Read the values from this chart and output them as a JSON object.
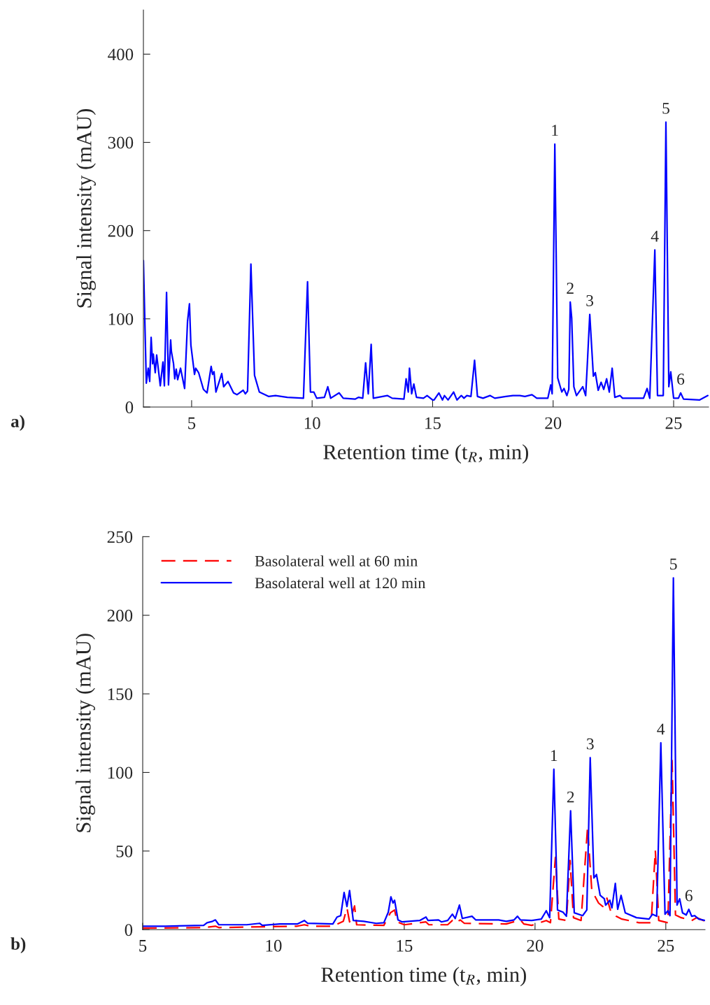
{
  "chart_data": [
    {
      "type": "line",
      "xlabel": "Retention time (t$_{R}$, min)",
      "ylabel": "Signal intensity (mAU)",
      "xlim": [
        3,
        26.45
      ],
      "ylim": [
        0,
        450
      ],
      "xticks": [
        5,
        10,
        15,
        20,
        25
      ],
      "yticks": [
        0,
        100,
        200,
        300,
        400
      ],
      "grid": false,
      "legend": false,
      "annotations": [
        "a)",
        {
          "text": "1",
          "x": 20.07,
          "y": 298
        },
        {
          "text": "2",
          "x": 20.71,
          "y": 119
        },
        {
          "text": "3",
          "x": 21.52,
          "y": 105
        },
        {
          "text": "4",
          "x": 24.22,
          "y": 178
        },
        {
          "text": "5",
          "x": 24.68,
          "y": 323
        },
        {
          "text": "6",
          "x": 25.29,
          "y": 16
        }
      ],
      "series": [
        {
          "color": "#0000ff",
          "line_style": "solid",
          "x": [
            3.0,
            3.12,
            3.2,
            3.26,
            3.32,
            3.38,
            3.41,
            3.49,
            3.55,
            3.7,
            3.81,
            3.87,
            3.96,
            4.04,
            4.13,
            4.16,
            4.25,
            4.3,
            4.36,
            4.42,
            4.54,
            4.71,
            4.83,
            4.91,
            4.97,
            5.12,
            5.17,
            5.29,
            5.49,
            5.64,
            5.81,
            5.87,
            5.93,
            6.01,
            6.25,
            6.33,
            6.51,
            6.74,
            6.88,
            7.14,
            7.23,
            7.32,
            7.46,
            7.61,
            7.81,
            8.19,
            8.48,
            8.97,
            9.64,
            9.81,
            9.93,
            10.07,
            10.19,
            10.51,
            10.65,
            10.77,
            11.12,
            11.29,
            11.78,
            11.93,
            12.1,
            12.22,
            12.33,
            12.45,
            12.54,
            13.12,
            13.32,
            13.81,
            13.9,
            13.99,
            14.04,
            14.13,
            14.22,
            14.33,
            14.62,
            14.77,
            15.0,
            15.06,
            15.26,
            15.41,
            15.49,
            15.64,
            15.87,
            16.01,
            16.19,
            16.3,
            16.42,
            16.59,
            16.74,
            16.86,
            17.09,
            17.38,
            17.58,
            18.04,
            18.33,
            18.62,
            18.83,
            19.12,
            19.32,
            19.78,
            19.9,
            19.96,
            20.07,
            20.19,
            20.36,
            20.45,
            20.57,
            20.65,
            20.71,
            20.77,
            20.86,
            20.97,
            21.23,
            21.35,
            21.41,
            21.52,
            21.67,
            21.75,
            21.87,
            21.99,
            22.1,
            22.22,
            22.33,
            22.45,
            22.56,
            22.77,
            22.88,
            23.75,
            23.9,
            24.01,
            24.22,
            24.33,
            24.57,
            24.68,
            24.8,
            24.88,
            25.0,
            25.2,
            25.29,
            25.41,
            26.07,
            26.42
          ],
          "values": [
            166,
            27,
            44,
            29,
            79,
            49,
            60,
            39,
            59,
            24,
            51,
            24,
            130,
            25,
            76,
            63,
            49,
            32,
            43,
            31,
            44,
            21,
            97,
            117,
            70,
            37,
            44,
            39,
            20,
            16,
            46,
            37,
            40,
            17,
            38,
            23,
            29,
            16,
            14,
            19,
            15,
            18,
            162,
            36,
            17,
            12,
            13,
            11,
            10,
            142,
            17,
            17,
            10,
            11,
            23,
            10,
            16,
            10,
            9,
            11,
            10,
            50,
            15,
            71,
            10,
            13,
            10,
            9,
            32,
            17,
            44,
            15,
            26,
            11,
            10,
            13,
            8,
            8,
            16,
            8,
            13,
            8,
            17,
            8,
            13,
            10,
            13,
            12,
            53,
            12,
            10,
            13,
            10,
            12,
            13,
            13,
            12,
            14,
            10,
            10,
            25,
            15,
            298,
            33,
            17,
            21,
            13,
            20,
            119,
            101,
            23,
            13,
            23,
            13,
            44,
            105,
            35,
            39,
            19,
            28,
            20,
            32,
            17,
            44,
            11,
            13,
            10,
            10,
            21,
            10,
            178,
            13,
            13,
            323,
            23,
            40,
            10,
            10,
            16,
            9,
            8,
            13
          ]
        }
      ]
    },
    {
      "type": "line",
      "xlabel": "Retention time (t$_{R}$, min)",
      "ylabel": "Signal intensity (mAU)",
      "xlim": [
        5,
        26.5
      ],
      "ylim": [
        0,
        250
      ],
      "xticks": [
        5,
        10,
        15,
        20,
        25
      ],
      "yticks": [
        0,
        50,
        100,
        150,
        200,
        250
      ],
      "grid": false,
      "legend": "top left",
      "annotations": [
        "b)",
        {
          "text": "1",
          "x": 20.72,
          "y": 102
        },
        {
          "text": "2",
          "x": 21.36,
          "y": 75.6
        },
        {
          "text": "3",
          "x": 22.11,
          "y": 109.4
        },
        {
          "text": "4",
          "x": 24.81,
          "y": 118.8
        },
        {
          "text": "5",
          "x": 25.29,
          "y": 223.8
        },
        {
          "text": "6",
          "x": 25.88,
          "y": 12.9
        }
      ],
      "series": [
        {
          "name": "Basolateral well at 60 min",
          "color": "#ff0000",
          "line_style": "dashed",
          "x": [
            5.0,
            7.33,
            7.78,
            7.91,
            10.91,
            11.18,
            11.42,
            12.27,
            12.67,
            12.81,
            12.91,
            13.1,
            13.18,
            14.22,
            14.47,
            14.63,
            14.73,
            15.0,
            15.83,
            15.94,
            16.66,
            16.84,
            16.95,
            17.14,
            17.3,
            18.9,
            19.44,
            19.57,
            19.87,
            20.43,
            20.59,
            20.78,
            20.91,
            21.2,
            21.34,
            21.47,
            21.76,
            22.01,
            22.17,
            22.43,
            22.59,
            22.75,
            22.91,
            23.1,
            23.32,
            23.98,
            24.44,
            24.6,
            24.73,
            25.08,
            25.24,
            25.37,
            25.59,
            25.99,
            26.18,
            26.5
          ],
          "values": [
            0.9,
            1.3,
            2.2,
            1.3,
            2.2,
            3.1,
            2.2,
            2.2,
            5.3,
            13.8,
            4.9,
            15.1,
            3.1,
            2.7,
            10.7,
            12.5,
            4.9,
            3.1,
            4.9,
            3.1,
            3.1,
            5.8,
            4.0,
            6.2,
            4.0,
            3.6,
            6.2,
            3.6,
            2.7,
            5.8,
            4.4,
            46,
            6.7,
            5.8,
            44,
            7.6,
            5.8,
            65.4,
            24.9,
            16.9,
            14.7,
            20.0,
            10.7,
            8.5,
            6.7,
            4.4,
            4.4,
            50.3,
            5.8,
            4.4,
            107.6,
            9.3,
            7.6,
            5.8,
            7.6,
            5.3
          ]
        },
        {
          "name": "Basolateral well at 120 min",
          "color": "#0000ff",
          "line_style": "solid",
          "x": [
            5.0,
            5.86,
            7.33,
            7.46,
            7.67,
            7.78,
            7.91,
            8.98,
            9.47,
            9.57,
            10.24,
            10.91,
            11.18,
            11.31,
            12.27,
            12.43,
            12.57,
            12.7,
            12.81,
            12.91,
            13.05,
            13.45,
            13.93,
            14.22,
            14.39,
            14.49,
            14.57,
            14.63,
            14.76,
            14.92,
            15.59,
            15.83,
            15.91,
            16.31,
            16.42,
            16.66,
            16.84,
            16.95,
            17.11,
            17.22,
            17.59,
            17.73,
            18.61,
            18.9,
            19.2,
            19.33,
            19.44,
            19.87,
            20.24,
            20.43,
            20.56,
            20.72,
            20.86,
            21.07,
            21.2,
            21.36,
            21.5,
            21.82,
            21.98,
            22.11,
            22.25,
            22.35,
            22.49,
            22.65,
            22.7,
            22.86,
            22.94,
            23.07,
            23.16,
            23.29,
            23.45,
            23.88,
            24.36,
            24.49,
            24.65,
            24.81,
            24.97,
            25.08,
            25.16,
            25.29,
            25.43,
            25.53,
            25.64,
            25.78,
            25.88,
            25.99,
            26.1,
            26.26,
            26.5
          ],
          "values": [
            2.2,
            2.2,
            2.7,
            4.4,
            5.3,
            6.2,
            3.1,
            3.1,
            4.0,
            2.7,
            3.6,
            3.6,
            5.8,
            4.0,
            3.6,
            8.0,
            8.9,
            23.6,
            14.7,
            24.9,
            5.8,
            5.3,
            4.0,
            4.4,
            11.1,
            20.9,
            16.9,
            18.7,
            6.2,
            4.9,
            5.8,
            8.0,
            5.8,
            6.2,
            4.9,
            5.8,
            9.8,
            7.1,
            15.6,
            7.1,
            8.5,
            6.2,
            6.2,
            5.3,
            6.2,
            8.5,
            6.2,
            5.8,
            6.7,
            12.0,
            7.6,
            102,
            12.5,
            11.1,
            8.5,
            75.6,
            10.7,
            8.9,
            12.5,
            109.4,
            32.9,
            35.1,
            21.8,
            19.6,
            15.6,
            18.7,
            13.8,
            29.4,
            12.9,
            21.8,
            10.7,
            7.6,
            6.7,
            9.8,
            8.5,
            118.8,
            9.8,
            12.0,
            8.9,
            223.8,
            15.6,
            19.6,
            10.7,
            9.3,
            12.9,
            8.5,
            8.9,
            6.7,
            5.8
          ]
        }
      ]
    }
  ]
}
